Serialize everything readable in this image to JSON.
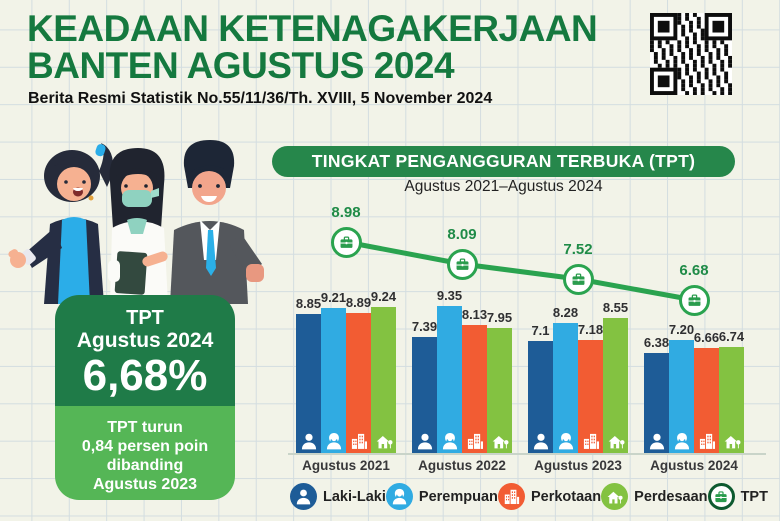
{
  "header": {
    "title_line1": "KEADAAN KETENAGAKERJAAN",
    "title_line2": "BANTEN AGUSTUS 2024",
    "subtitle": "Berita Resmi Statistik No.55/11/36/Th. XVIII, 5 November 2024"
  },
  "highlight_box": {
    "line1": "TPT",
    "line2": "Agustus 2024",
    "value": "6,68%",
    "note_lines": [
      "TPT turun",
      "0,84 persen poin",
      "dibanding",
      "Agustus 2023"
    ]
  },
  "chart_data": {
    "type": "bar",
    "title": "TINGKAT PENGANGGURAN TERBUKA (TPT)",
    "subtitle": "Agustus 2021–Agustus 2024",
    "categories": [
      "Agustus 2021",
      "Agustus 2022",
      "Agustus 2023",
      "Agustus 2024"
    ],
    "series": [
      {
        "name": "Laki-Laki",
        "icon": "male-icon",
        "color": "#1e5c97",
        "values": [
          8.85,
          7.39,
          7.1,
          6.38
        ],
        "labels": [
          "8.85",
          "7.39",
          "7.1",
          "6.38"
        ]
      },
      {
        "name": "Perempuan",
        "icon": "female-icon",
        "color": "#30abe2",
        "values": [
          9.21,
          9.35,
          8.28,
          7.2
        ],
        "labels": [
          "9.21",
          "9.35",
          "8.28",
          "7.20"
        ]
      },
      {
        "name": "Perkotaan",
        "icon": "city-icon",
        "color": "#f25c33",
        "values": [
          8.89,
          8.13,
          7.18,
          6.66
        ],
        "labels": [
          "8.89",
          "8.13",
          "7.18",
          "6.66"
        ]
      },
      {
        "name": "Perdesaan",
        "icon": "village-icon",
        "color": "#83c241",
        "values": [
          9.24,
          7.95,
          8.55,
          6.74
        ],
        "labels": [
          "9.24",
          "7.95",
          "8.55",
          "6.74"
        ]
      }
    ],
    "line_series": {
      "name": "TPT",
      "icon": "briefcase-icon",
      "color": "#2aa34f",
      "values": [
        8.98,
        8.09,
        7.52,
        6.68
      ],
      "labels": [
        "8.98",
        "8.09",
        "7.52",
        "6.68"
      ]
    },
    "xlabel": "",
    "ylabel": "",
    "ylim": [
      0,
      10
    ],
    "value_axis_hidden": true,
    "legend_position": "bottom",
    "background": "graph-paper"
  },
  "colors": {
    "title_green": "#15793f",
    "banner_green": "#26874b",
    "box_dark_green": "#1f7b48",
    "box_light_green": "#55b656",
    "tpt_line_green": "#2aa34f",
    "tpt_ring_dark": "#0d5a2f",
    "page_bg": "#f2f3e8"
  }
}
